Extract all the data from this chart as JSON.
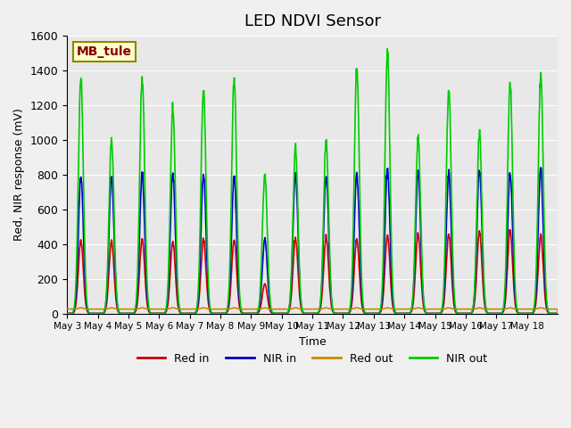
{
  "title": "LED NDVI Sensor",
  "xlabel": "Time",
  "ylabel": "Red, NIR response (mV)",
  "ylim": [
    0,
    1600
  ],
  "annotation": "MB_tule",
  "background_color": "#e8e8e8",
  "legend_labels": [
    "Red in",
    "NIR in",
    "Red out",
    "NIR out"
  ],
  "legend_colors": [
    "#cc0000",
    "#0000cc",
    "#cc8800",
    "#00cc00"
  ],
  "xtick_labels": [
    "May 3",
    "May 4",
    "May 5",
    "May 6",
    "May 7",
    "May 8",
    "May 9",
    "May 10",
    "May 11",
    "May 12",
    "May 13",
    "May 14",
    "May 15",
    "May 16",
    "May 17",
    "May 18"
  ],
  "num_days": 16,
  "nir_out_peaks": [
    1370,
    1010,
    1370,
    1190,
    1300,
    1350,
    800,
    960,
    1000,
    1420,
    1510,
    1010,
    1300,
    1050,
    1330,
    1380
  ],
  "red_in_peaks": [
    420,
    420,
    430,
    410,
    430,
    420,
    170,
    430,
    440,
    430,
    450,
    460,
    460,
    470,
    480,
    450
  ],
  "nir_in_peaks": [
    790,
    790,
    810,
    810,
    800,
    790,
    430,
    800,
    800,
    810,
    830,
    810,
    810,
    830,
    810,
    840
  ],
  "red_out_base": 25
}
